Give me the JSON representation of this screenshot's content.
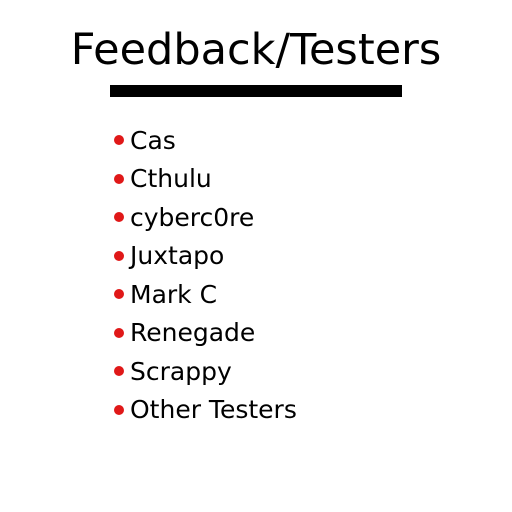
{
  "title": "Feedback/Testers",
  "bullet_color": "#e01818",
  "testers": [
    "Cas",
    "Cthulu",
    "cyberc0re",
    "Juxtapo",
    "Mark C",
    "Renegade",
    "Scrappy",
    "Other Testers"
  ]
}
